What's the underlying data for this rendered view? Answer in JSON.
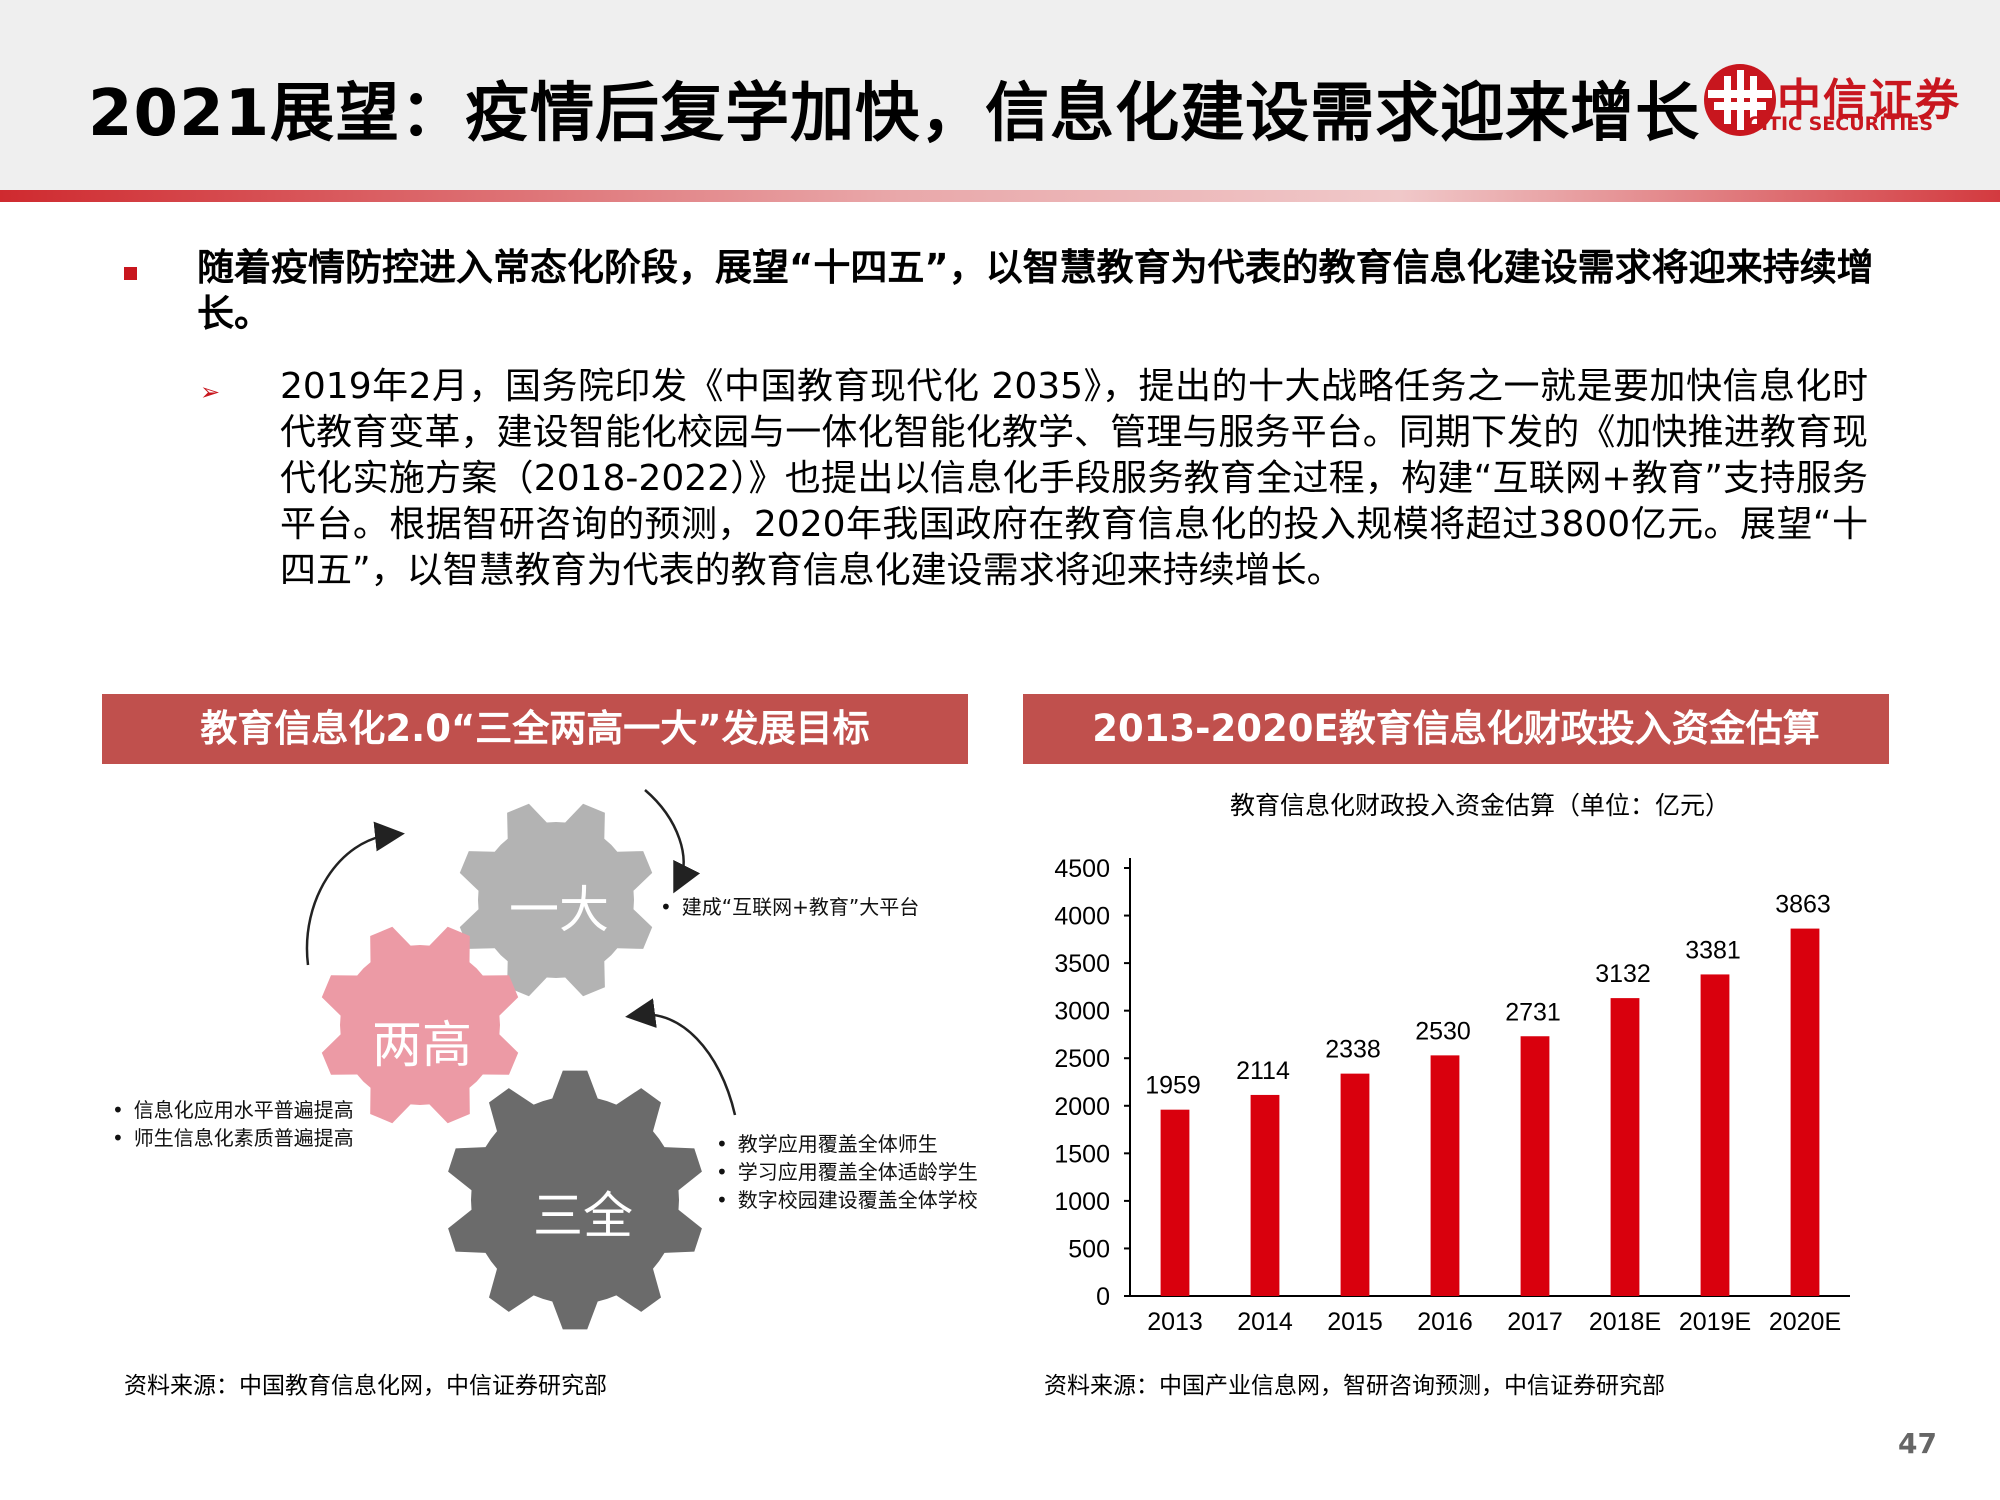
{
  "title": "2021展望：疫情后复学加快，信息化建设需求迎来增长",
  "logo": {
    "cn": "中信证券",
    "en": "CITIC SECURITIES"
  },
  "main_point": "随着疫情防控进入常态化阶段，展望“十四五”，以智慧教育为代表的教育信息化建设需求将迎来持续增长。",
  "sub_point": "2019年2月，国务院印发《中国教育现代化 2035》，提出的十大战略任务之一就是要加快信息化时代教育变革，建设智能化校园与一体化智能化教学、管理与服务平台。同期下发的《加快推进教育现代化实施方案（2018-2022）》也提出以信息化手段服务教育全过程，构建“互联网+教育”支持服务平台。根据智研咨询的预测，2020年我国政府在教育信息化的投入规模将超过3800亿元。展望“十四五”，以智慧教育为代表的教育信息化建设需求将迎来持续增长。",
  "left_panel": {
    "header": "教育信息化2.0“三全两高一大”发展目标",
    "gears": {
      "top": "一大",
      "middle": "两高",
      "bottom": "三全"
    },
    "notes": {
      "top": [
        "建成“互联网+教育”大平台"
      ],
      "left": [
        "信息化应用水平普遍提高",
        "师生信息化素质普遍提高"
      ],
      "bottom": [
        "教学应用覆盖全体师生",
        "学习应用覆盖全体适龄学生",
        "数字校园建设覆盖全体学校"
      ]
    },
    "source": "资料来源：中国教育信息化网，中信证券研究部"
  },
  "right_panel": {
    "header": "2013-2020E教育信息化财政投入资金估算",
    "source": "资料来源：中国产业信息网，智研咨询预测，中信证券研究部"
  },
  "chart_data": {
    "type": "bar",
    "title": "教育信息化财政投入资金估算（单位：亿元）",
    "categories": [
      "2013",
      "2014",
      "2015",
      "2016",
      "2017",
      "2018E",
      "2019E",
      "2020E"
    ],
    "values": [
      1959,
      2114,
      2338,
      2530,
      2731,
      3132,
      3381,
      3863
    ],
    "y_ticks": [
      0,
      500,
      1000,
      1500,
      2000,
      2500,
      3000,
      3500,
      4000,
      4500
    ],
    "ylim": [
      0,
      4500
    ],
    "bar_color": "#d9000d",
    "grid": false,
    "legend": "none",
    "data_labels": true
  },
  "page_number": "47",
  "colors": {
    "accent": "#c8161e",
    "panel_header": "#c0504d",
    "gear_top": "#b3b3b3",
    "gear_middle": "#ec9aa5",
    "gear_bottom": "#6b6b6b"
  }
}
